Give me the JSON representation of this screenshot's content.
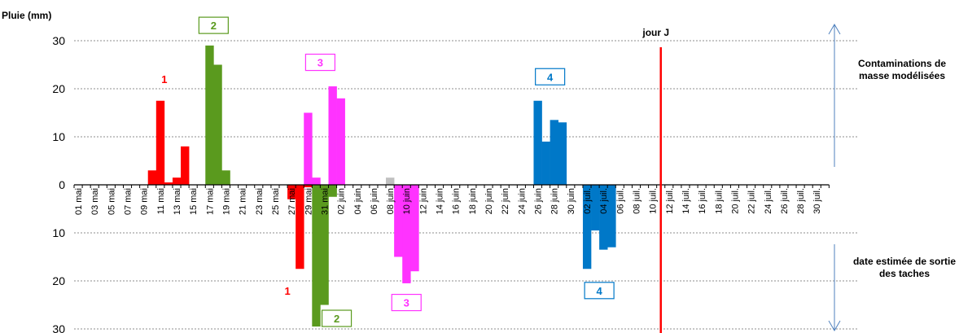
{
  "chart_data": {
    "type": "bar",
    "ylabel": "Pluie (mm)",
    "ylim": [
      -30,
      30
    ],
    "yticks": [
      30,
      20,
      10,
      0,
      -10,
      -20,
      -30
    ],
    "ytick_labels": [
      "30",
      "20",
      "10",
      "0",
      "10",
      "20",
      "30"
    ],
    "grid": true,
    "x_labels": [
      "01 mai",
      "03 mai",
      "05 mai",
      "07 mai",
      "09 mai",
      "11 mai",
      "13 mai",
      "15 mai",
      "17 mai",
      "19 mai",
      "21 mai",
      "23 mai",
      "25 mai",
      "27 mai",
      "29 mai",
      "31 mai",
      "02 juin",
      "04 juin",
      "06 juin",
      "08 juin",
      "10 juin",
      "12 juin",
      "14 juin",
      "16 juin",
      "18 juin",
      "20 juin",
      "22 juin",
      "24 juin",
      "26 juin",
      "28 juin",
      "30 juin",
      "02 juil.",
      "04 juil.",
      "06 juil.",
      "08 juil.",
      "10 juil.",
      "12 juil.",
      "14 juil.",
      "16 juil.",
      "18 juil.",
      "20 juil.",
      "22 juil.",
      "24 juil.",
      "26 juil.",
      "28 juil.",
      "30 juil."
    ],
    "series": [
      {
        "color": "#ff0000",
        "x": [
          10,
          11,
          12,
          13,
          14,
          15
        ],
        "values": [
          3,
          17.5,
          0.5,
          1.5,
          8,
          0
        ]
      },
      {
        "color": "#5a9a1e",
        "x": [
          16,
          17,
          18,
          19
        ],
        "values": [
          0,
          29,
          25,
          3
        ]
      },
      {
        "color": "#ff33ff",
        "x": [
          29,
          30,
          31,
          32,
          33
        ],
        "values": [
          15,
          1.5,
          0,
          20.5,
          18
        ]
      },
      {
        "color": "#c0c0c0",
        "x": [
          39
        ],
        "values": [
          1.5
        ]
      },
      {
        "color": "#0078c8",
        "x": [
          57,
          58,
          59,
          60
        ],
        "values": [
          17.5,
          9,
          13.5,
          13
        ]
      },
      {
        "color": "#ff0000",
        "x": [
          27,
          28,
          29
        ],
        "values": [
          -3,
          -17.5,
          -0.5
        ]
      },
      {
        "color": "#5a9a1e",
        "x": [
          30,
          31,
          32
        ],
        "values": [
          -29.5,
          -25,
          -2.5
        ]
      },
      {
        "color": "#ff33ff",
        "x": [
          40,
          41,
          42
        ],
        "values": [
          -15,
          -20.5,
          -18
        ]
      },
      {
        "color": "#0078c8",
        "x": [
          63,
          64,
          65,
          66
        ],
        "values": [
          -17.5,
          -9.5,
          -13.5,
          -13
        ]
      }
    ],
    "marker_line": {
      "x": 72,
      "color": "#ff0000",
      "label": "jour J"
    },
    "annotations": {
      "top": [
        {
          "text": "1",
          "color": "#ff0000",
          "x": 11.5,
          "y": 22,
          "boxed": false
        },
        {
          "text": "2",
          "color": "#5a9a1e",
          "x": 17.5,
          "y": 33.2,
          "boxed": true
        },
        {
          "text": "3",
          "color": "#ff33ff",
          "x": 30.5,
          "y": 25.5,
          "boxed": true
        },
        {
          "text": "4",
          "color": "#0078c8",
          "x": 58.5,
          "y": 22.5,
          "boxed": true
        }
      ],
      "bottom": [
        {
          "text": "1",
          "color": "#ff0000",
          "x": 26.5,
          "y": -22,
          "boxed": false
        },
        {
          "text": "2",
          "color": "#5a9a1e",
          "x": 32.5,
          "y": -27.8,
          "boxed": true
        },
        {
          "text": "3",
          "color": "#ff33ff",
          "x": 41,
          "y": -24.5,
          "boxed": true
        },
        {
          "text": "4",
          "color": "#0078c8",
          "x": 64.5,
          "y": -22,
          "boxed": true
        }
      ]
    },
    "side_notes": {
      "top": "Contaminations de masse modélisées",
      "bottom": "date estimée de sortie des taches"
    },
    "arrow_color": "#4f81bd"
  }
}
